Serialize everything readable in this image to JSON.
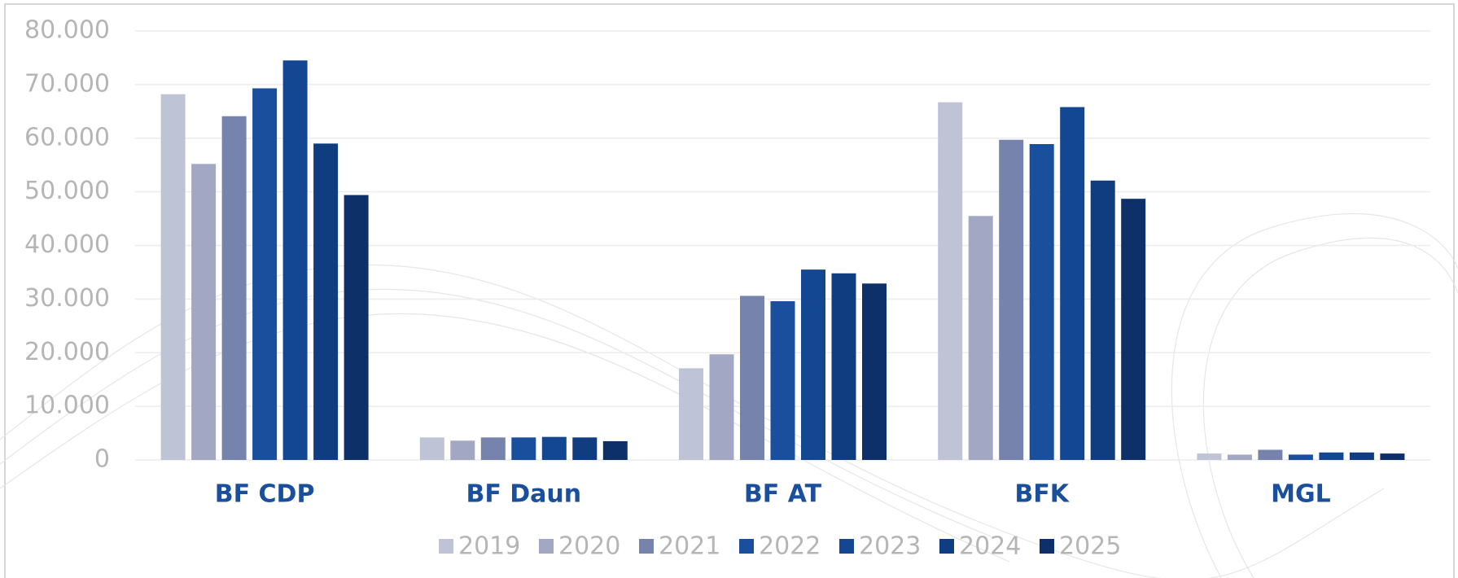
{
  "chart_data": {
    "type": "bar",
    "categories": [
      "BF CDP",
      "BF Daun",
      "BF AT",
      "BFK",
      "MGL"
    ],
    "series": [
      {
        "name": "2019",
        "color": "#bfc3d6",
        "values": [
          68200,
          4200,
          17100,
          66700,
          1200
        ]
      },
      {
        "name": "2020",
        "color": "#a2a8c4",
        "values": [
          55200,
          3600,
          19700,
          45500,
          1000
        ]
      },
      {
        "name": "2021",
        "color": "#7683ad",
        "values": [
          64100,
          4200,
          30600,
          59700,
          1900
        ]
      },
      {
        "name": "2022",
        "color": "#1a4f9e",
        "values": [
          69300,
          4200,
          29600,
          58900,
          1000
        ]
      },
      {
        "name": "2023",
        "color": "#134791",
        "values": [
          74500,
          4300,
          35500,
          65800,
          1400
        ]
      },
      {
        "name": "2024",
        "color": "#103d80",
        "values": [
          59000,
          4200,
          34800,
          52100,
          1400
        ]
      },
      {
        "name": "2025",
        "color": "#0d3068",
        "values": [
          49400,
          3500,
          32900,
          48700,
          1200
        ]
      }
    ],
    "ylim": [
      0,
      80000
    ],
    "yticks": [
      0,
      {
        "value": 10000,
        "label": "10.000"
      },
      {
        "value": 20000,
        "label": "20.000"
      },
      {
        "value": 30000,
        "label": "30.000"
      },
      {
        "value": 40000,
        "label": "40.000"
      },
      {
        "value": 50000,
        "label": "50.000"
      },
      {
        "value": 60000,
        "label": "60.000"
      },
      {
        "value": 70000,
        "label": "70.000"
      },
      {
        "value": 80000,
        "label": "80.000"
      }
    ],
    "grid": true,
    "legend": "bottom"
  }
}
